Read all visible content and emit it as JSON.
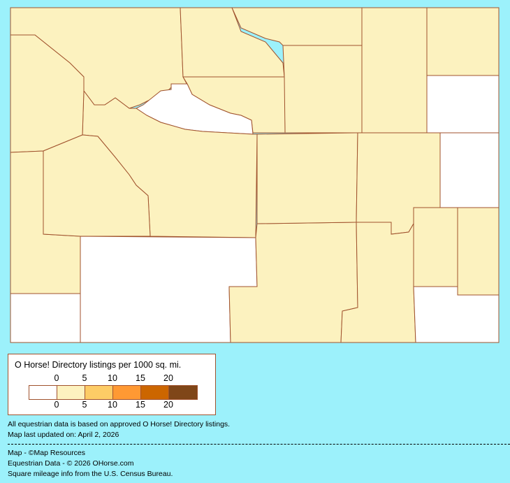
{
  "map": {
    "state": "Wyoming",
    "fill_colors": {
      "none": "#ffffff",
      "low": "#fcf2bf"
    },
    "border_color": "#a0522d",
    "counties": [
      {
        "id": "park",
        "level": "low"
      },
      {
        "id": "big-horn",
        "level": "low"
      },
      {
        "id": "sheridan",
        "level": "low"
      },
      {
        "id": "campbell",
        "level": "low"
      },
      {
        "id": "crook",
        "level": "low"
      },
      {
        "id": "weston",
        "level": "none"
      },
      {
        "id": "johnson",
        "level": "low"
      },
      {
        "id": "washakie",
        "level": "low"
      },
      {
        "id": "hot-springs",
        "level": "none"
      },
      {
        "id": "fremont",
        "level": "low"
      },
      {
        "id": "teton",
        "level": "low"
      },
      {
        "id": "lincoln",
        "level": "low"
      },
      {
        "id": "sublette",
        "level": "low"
      },
      {
        "id": "uinta",
        "level": "none"
      },
      {
        "id": "sweetwater",
        "level": "none"
      },
      {
        "id": "carbon",
        "level": "low"
      },
      {
        "id": "natrona",
        "level": "low"
      },
      {
        "id": "converse",
        "level": "low"
      },
      {
        "id": "niobrara",
        "level": "none"
      },
      {
        "id": "albany",
        "level": "low"
      },
      {
        "id": "platte",
        "level": "low"
      },
      {
        "id": "goshen",
        "level": "low"
      },
      {
        "id": "laramie",
        "level": "none"
      }
    ]
  },
  "legend": {
    "title": "O Horse! Directory listings per 1000 sq. mi.",
    "top_labels": [
      "0",
      "5",
      "10",
      "15",
      "20"
    ],
    "bottom_labels": [
      "0",
      "5",
      "10",
      "15",
      "20"
    ],
    "colors": [
      "#ffffff",
      "#fdf2bf",
      "#fdcc66",
      "#ff9933",
      "#cc6600",
      "#7f4618"
    ]
  },
  "notes": {
    "data_basis": "All equestrian data is based on approved O Horse! Directory listings.",
    "updated": "Map last updated on: April 2, 2026",
    "credit_map": "Map - ©Map Resources",
    "credit_data": "Equestrian Data - © 2026 OHorse.com",
    "credit_census": "Square mileage info from the U.S. Census Bureau."
  }
}
